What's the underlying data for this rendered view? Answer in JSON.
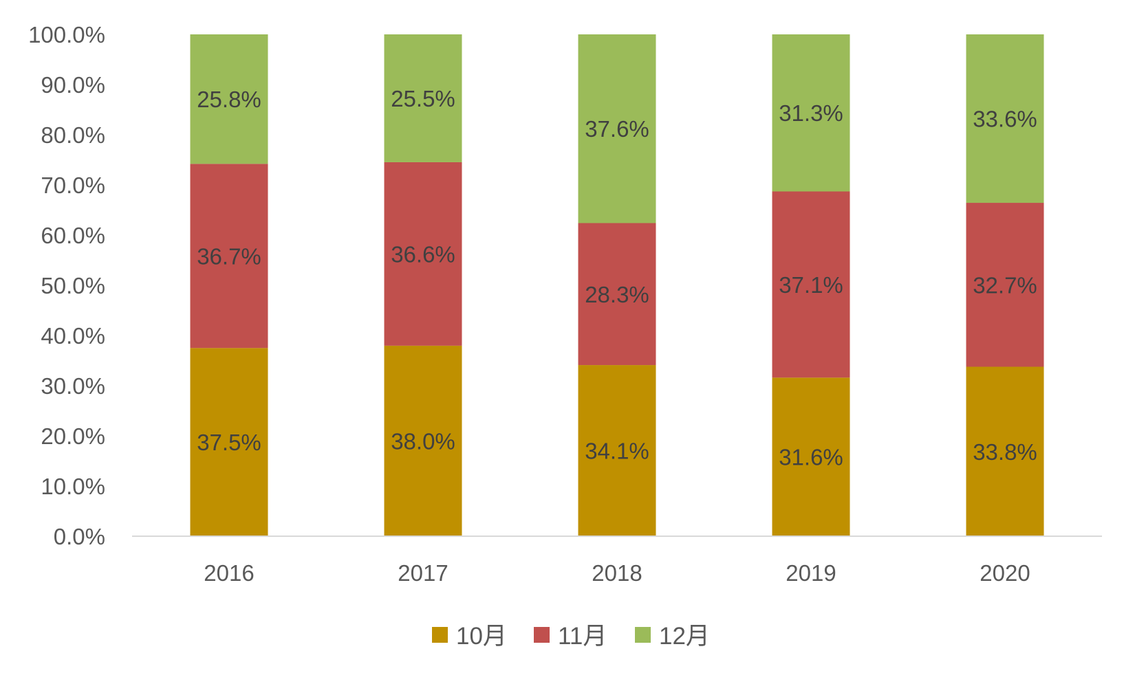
{
  "chart_data": {
    "type": "bar",
    "stacked": "percent",
    "title": "",
    "xlabel": "",
    "ylabel": "",
    "ylim": [
      0,
      100
    ],
    "categories": [
      "2016",
      "2017",
      "2018",
      "2019",
      "2020"
    ],
    "yticks": [
      "0.0%",
      "10.0%",
      "20.0%",
      "30.0%",
      "40.0%",
      "50.0%",
      "60.0%",
      "70.0%",
      "80.0%",
      "90.0%",
      "100.0%"
    ],
    "series": [
      {
        "name": "10月",
        "color": "#BF9000",
        "values": [
          37.5,
          38.0,
          34.1,
          31.6,
          33.8
        ],
        "labels": [
          "37.5%",
          "38.0%",
          "34.1%",
          "31.6%",
          "33.8%"
        ]
      },
      {
        "name": "11月",
        "color": "#C0504D",
        "values": [
          36.7,
          36.6,
          28.3,
          37.1,
          32.7
        ],
        "labels": [
          "36.7%",
          "36.6%",
          "28.3%",
          "37.1%",
          "32.7%"
        ]
      },
      {
        "name": "12月",
        "color": "#9BBB59",
        "values": [
          25.8,
          25.5,
          37.6,
          31.3,
          33.6
        ],
        "labels": [
          "25.8%",
          "25.5%",
          "37.6%",
          "31.3%",
          "33.6%"
        ]
      }
    ],
    "grid": false,
    "legend_position": "bottom"
  }
}
